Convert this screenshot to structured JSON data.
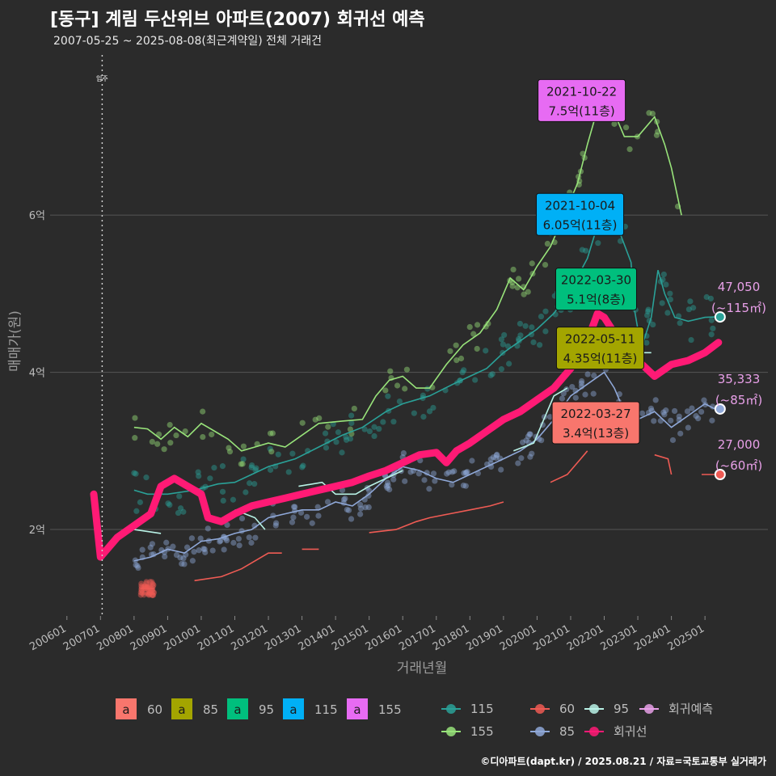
{
  "header": {
    "title": "[동구] 계림 두산위브 아파트(2007) 회귀선 예측",
    "subtitle": "2007-05-25 ~ 2025-08-08(최근계약일) 전체 거래건"
  },
  "footer": "©디아파트(dapt.kr) / 2025.08.21 / 자료=국토교통부 실거래가",
  "colors": {
    "background": "#2b2b2b",
    "grid": "#555555",
    "s60": "#f8766d",
    "s85_label": "#a3a500",
    "s95_label": "#00bf7d",
    "s115_label": "#00b0f6",
    "s155_label": "#e76bf3",
    "line115": "#2aa198",
    "line155": "#98e37a",
    "line60": "#ef5b54",
    "line85": "#8fa8d8",
    "line95": "#b8f2e6",
    "regression": "#ff1a75",
    "forecast": "#e8a0e8"
  },
  "chart_data": {
    "type": "line",
    "title": "[동구] 계림 두산위브 아파트(2007) 회귀선 예측",
    "xlabel": "거래년월",
    "ylabel": "매매가(원)",
    "x_ticks": [
      "200601",
      "200701",
      "200801",
      "200901",
      "201001",
      "201101",
      "201201",
      "201301",
      "201401",
      "201501",
      "201601",
      "201701",
      "201801",
      "201901",
      "202001",
      "202101",
      "202201",
      "202301",
      "202401",
      "202501"
    ],
    "y_ticks": [
      {
        "value": 20000,
        "label": "2억"
      },
      {
        "value": 40000,
        "label": "4억"
      },
      {
        "value": 60000,
        "label": "6억"
      }
    ],
    "xlim": [
      2005.5,
      2026.2
    ],
    "ylim": [
      9000,
      81000
    ],
    "move_in": {
      "x": 2007.05,
      "label": "입주"
    },
    "series": [
      {
        "name": "155",
        "key": "line155",
        "points": [
          [
            2008.0,
            33000
          ],
          [
            2008.4,
            32800
          ],
          [
            2008.8,
            31500
          ],
          [
            2009.2,
            33000
          ],
          [
            2009.6,
            31800
          ],
          [
            2010.0,
            33500
          ],
          [
            2010.4,
            32500
          ],
          [
            2010.8,
            31500
          ],
          [
            2011.2,
            30000
          ],
          [
            2011.6,
            30500
          ],
          [
            2012.0,
            31000
          ],
          [
            2012.5,
            30500
          ],
          [
            2013.5,
            33500
          ],
          [
            2014.2,
            33800
          ],
          [
            2014.8,
            34000
          ],
          [
            2015.2,
            37000
          ],
          [
            2015.6,
            39000
          ],
          [
            2016.0,
            39500
          ],
          [
            2016.4,
            38000
          ],
          [
            2016.8,
            38000
          ],
          [
            2017.3,
            41000
          ],
          [
            2017.8,
            43500
          ],
          [
            2018.3,
            45000
          ],
          [
            2018.8,
            48000
          ],
          [
            2019.2,
            52000
          ],
          [
            2019.6,
            50500
          ],
          [
            2020.0,
            53500
          ],
          [
            2020.4,
            56000
          ],
          [
            2020.8,
            60000
          ],
          [
            2021.2,
            64000
          ],
          [
            2021.5,
            69000
          ],
          [
            2021.8,
            73500
          ],
          [
            2021.85,
            75000
          ],
          [
            2022.1,
            75000
          ],
          [
            2022.6,
            70000
          ],
          [
            2023.0,
            70000
          ],
          [
            2023.5,
            72500
          ],
          [
            2023.8,
            69000
          ],
          [
            2024.0,
            66000
          ],
          [
            2024.2,
            62000
          ],
          [
            2024.3,
            60000
          ]
        ]
      },
      {
        "name": "115",
        "key": "line115",
        "points": [
          [
            2008.0,
            25000
          ],
          [
            2008.4,
            24500
          ],
          [
            2009.0,
            24500
          ],
          [
            2009.8,
            25000
          ],
          [
            2010.5,
            25800
          ],
          [
            2011.0,
            26000
          ],
          [
            2011.5,
            27000
          ],
          [
            2012.0,
            28000
          ],
          [
            2012.8,
            29000
          ],
          [
            2013.5,
            30500
          ],
          [
            2014.2,
            32000
          ],
          [
            2014.8,
            33000
          ],
          [
            2015.5,
            35000
          ],
          [
            2016.0,
            36000
          ],
          [
            2016.8,
            37000
          ],
          [
            2017.5,
            38500
          ],
          [
            2018.0,
            39500
          ],
          [
            2018.5,
            40500
          ],
          [
            2019.0,
            42500
          ],
          [
            2019.5,
            44000
          ],
          [
            2020.0,
            45500
          ],
          [
            2020.5,
            47500
          ],
          [
            2021.0,
            50500
          ],
          [
            2021.5,
            54500
          ],
          [
            2021.75,
            58000
          ],
          [
            2022.0,
            60000
          ],
          [
            2022.4,
            58500
          ],
          [
            2022.8,
            54000
          ],
          [
            2022.9,
            48000
          ],
          [
            2023.1,
            43000
          ],
          [
            2023.4,
            47000
          ],
          [
            2023.6,
            53000
          ],
          [
            2023.8,
            50000
          ],
          [
            2024.1,
            47000
          ],
          [
            2024.5,
            46500
          ],
          [
            2025.0,
            47000
          ],
          [
            2025.3,
            47050
          ]
        ]
      },
      {
        "name": "60",
        "key": "line60",
        "points": [
          [
            2008.2,
            12500
          ],
          [
            2008.6,
            12500
          ]
        ],
        "extra": [
          [
            [
              2009.8,
              13500
            ],
            [
              2010.6,
              14000
            ],
            [
              2011.2,
              15000
            ],
            [
              2011.6,
              16000
            ],
            [
              2012.0,
              17000
            ],
            [
              2012.4,
              17000
            ]
          ],
          [
            [
              2013.0,
              17500
            ],
            [
              2013.5,
              17500
            ]
          ],
          [
            [
              2015.0,
              19600
            ],
            [
              2015.8,
              20000
            ],
            [
              2016.4,
              21000
            ],
            [
              2016.8,
              21500
            ],
            [
              2017.4,
              22000
            ],
            [
              2018.0,
              22500
            ],
            [
              2018.6,
              23000
            ],
            [
              2019.0,
              23500
            ]
          ],
          [
            [
              2020.4,
              26000
            ],
            [
              2020.9,
              27000
            ],
            [
              2021.3,
              29000
            ],
            [
              2021.5,
              30000
            ]
          ],
          [
            [
              2022.1,
              34000
            ],
            [
              2022.6,
              34000
            ]
          ],
          [
            [
              2023.5,
              29500
            ],
            [
              2023.9,
              29000
            ],
            [
              2024.0,
              27000
            ]
          ],
          [
            [
              2024.9,
              27000
            ],
            [
              2025.3,
              27000
            ]
          ]
        ]
      },
      {
        "name": "85",
        "key": "line85",
        "points": [
          [
            2008.0,
            16000
          ],
          [
            2008.5,
            16500
          ],
          [
            2009.0,
            17500
          ],
          [
            2009.5,
            17000
          ],
          [
            2010.0,
            18500
          ],
          [
            2010.5,
            18800
          ],
          [
            2011.0,
            19500
          ],
          [
            2011.5,
            20000
          ],
          [
            2012.0,
            21500
          ],
          [
            2012.5,
            22000
          ],
          [
            2013.0,
            22500
          ],
          [
            2013.5,
            22500
          ],
          [
            2014.0,
            23500
          ],
          [
            2014.5,
            23000
          ],
          [
            2015.0,
            24500
          ],
          [
            2015.5,
            26500
          ],
          [
            2016.0,
            28000
          ],
          [
            2016.5,
            27500
          ],
          [
            2017.0,
            26500
          ],
          [
            2017.5,
            26000
          ],
          [
            2018.0,
            27000
          ],
          [
            2018.5,
            28000
          ],
          [
            2019.0,
            29000
          ],
          [
            2019.5,
            30000
          ],
          [
            2020.0,
            31500
          ],
          [
            2020.5,
            34000
          ],
          [
            2021.0,
            37000
          ],
          [
            2021.5,
            38500
          ],
          [
            2022.0,
            40000
          ],
          [
            2022.3,
            38000
          ],
          [
            2022.6,
            35000
          ],
          [
            2023.0,
            34000
          ],
          [
            2023.5,
            35000
          ],
          [
            2024.0,
            33000
          ],
          [
            2024.5,
            34500
          ],
          [
            2025.0,
            36000
          ],
          [
            2025.3,
            35333
          ]
        ]
      },
      {
        "name": "95",
        "key": "line95",
        "points": [
          [
            2008.0,
            20000
          ],
          [
            2008.8,
            19500
          ]
        ],
        "extra": [
          [
            [
              2011.0,
              22500
            ],
            [
              2011.6,
              21500
            ],
            [
              2011.9,
              20000
            ]
          ],
          [
            [
              2012.9,
              25500
            ],
            [
              2013.6,
              26000
            ],
            [
              2014.0,
              24500
            ],
            [
              2014.6,
              24500
            ],
            [
              2015.0,
              25500
            ],
            [
              2016.0,
              27500
            ]
          ],
          [
            [
              2019.3,
              30000
            ],
            [
              2019.9,
              31000
            ],
            [
              2020.5,
              37000
            ],
            [
              2020.9,
              38000
            ]
          ],
          [
            [
              2022.0,
              51000
            ],
            [
              2022.5,
              51500
            ]
          ],
          [
            [
              2022.9,
              42500
            ],
            [
              2023.4,
              42500
            ]
          ]
        ]
      }
    ],
    "regression": {
      "name": "회귀선",
      "points": [
        [
          2006.8,
          24500
        ],
        [
          2007.0,
          16500
        ],
        [
          2007.5,
          19000
        ],
        [
          2008.0,
          20500
        ],
        [
          2008.5,
          22000
        ],
        [
          2008.8,
          25500
        ],
        [
          2009.2,
          26500
        ],
        [
          2009.6,
          25500
        ],
        [
          2010.0,
          24500
        ],
        [
          2010.2,
          21500
        ],
        [
          2010.6,
          21000
        ],
        [
          2011.0,
          22000
        ],
        [
          2011.5,
          23000
        ],
        [
          2012.0,
          23500
        ],
        [
          2012.5,
          24000
        ],
        [
          2013.0,
          24500
        ],
        [
          2013.5,
          25000
        ],
        [
          2014.0,
          25500
        ],
        [
          2014.5,
          26000
        ],
        [
          2015.0,
          26800
        ],
        [
          2015.5,
          27500
        ],
        [
          2016.0,
          28500
        ],
        [
          2016.5,
          29500
        ],
        [
          2017.0,
          29800
        ],
        [
          2017.3,
          28500
        ],
        [
          2017.6,
          30000
        ],
        [
          2018.0,
          31000
        ],
        [
          2018.5,
          32500
        ],
        [
          2019.0,
          34000
        ],
        [
          2019.5,
          35000
        ],
        [
          2020.0,
          36500
        ],
        [
          2020.5,
          38000
        ],
        [
          2021.0,
          40500
        ],
        [
          2021.5,
          44000
        ],
        [
          2021.8,
          47500
        ],
        [
          2022.0,
          47000
        ],
        [
          2022.3,
          45000
        ],
        [
          2022.6,
          42500
        ],
        [
          2023.0,
          41500
        ],
        [
          2023.5,
          39500
        ],
        [
          2024.0,
          41000
        ],
        [
          2024.5,
          41500
        ],
        [
          2025.0,
          42500
        ],
        [
          2025.4,
          43800
        ]
      ]
    },
    "forecast_points": [
      {
        "series": "115",
        "x": 2025.45,
        "y": 47050
      },
      {
        "series": "85",
        "x": 2025.45,
        "y": 35333
      },
      {
        "series": "60",
        "x": 2025.45,
        "y": 27000
      }
    ],
    "forecast_labels": [
      {
        "value": "47,050",
        "area": "(~115㎡)",
        "y": 47050
      },
      {
        "value": "35,333",
        "area": "(~85㎡)",
        "y": 35333
      },
      {
        "value": "27,000",
        "area": "(~60㎡)",
        "y": 27000
      }
    ],
    "scatter_groups": [
      {
        "key": "line115",
        "center": "line115",
        "count": 150,
        "spread": 2600
      },
      {
        "key": "line155",
        "center": "line155",
        "count": 90,
        "spread": 1800
      },
      {
        "key": "line85",
        "center": "line85",
        "count": 200,
        "spread": 1800
      },
      {
        "key": "line60",
        "center": "line60",
        "count": 40,
        "spread": 900
      }
    ],
    "annotations": [
      {
        "date": "2021-10-22",
        "price": "7.5억(11층)",
        "colorKey": "s155_label",
        "x": 2021.81,
        "y": 75000,
        "textColor": "#1a1a1a"
      },
      {
        "date": "2021-10-04",
        "price": "6.05억(11층)",
        "colorKey": "s115_label",
        "x": 2021.76,
        "y": 60500,
        "textColor": "#1a1a1a"
      },
      {
        "date": "2022-03-30",
        "price": "5.1억(8층)",
        "colorKey": "s95_label",
        "x": 2022.24,
        "y": 51000,
        "textColor": "#1a1a1a"
      },
      {
        "date": "2022-05-11",
        "price": "4.35억(11층)",
        "colorKey": "s85_label",
        "x": 2022.36,
        "y": 43500,
        "textColor": "#1a1a1a"
      },
      {
        "date": "2022-03-27",
        "price": "3.4억(13층)",
        "colorKey": "s60",
        "x": 2022.23,
        "y": 34000,
        "textColor": "#1a1a1a"
      }
    ],
    "legend_area": {
      "items": [
        {
          "glyph": "a",
          "label": "60",
          "colorKey": "s60"
        },
        {
          "glyph": "a",
          "label": "85",
          "colorKey": "s85_label"
        },
        {
          "glyph": "a",
          "label": "95",
          "colorKey": "s95_label"
        },
        {
          "glyph": "a",
          "label": "115",
          "colorKey": "s115_label"
        },
        {
          "glyph": "a",
          "label": "155",
          "colorKey": "s155_label"
        }
      ]
    },
    "legend_lines": {
      "items": [
        {
          "label": "115",
          "colorKey": "line115"
        },
        {
          "label": "60",
          "colorKey": "line60"
        },
        {
          "label": "95",
          "colorKey": "line95"
        },
        {
          "label": "회귀예측",
          "colorKey": "forecast"
        },
        {
          "label": "155",
          "colorKey": "line155"
        },
        {
          "label": "85",
          "colorKey": "line85"
        },
        {
          "label": "회귀선",
          "colorKey": "regression"
        }
      ]
    }
  }
}
